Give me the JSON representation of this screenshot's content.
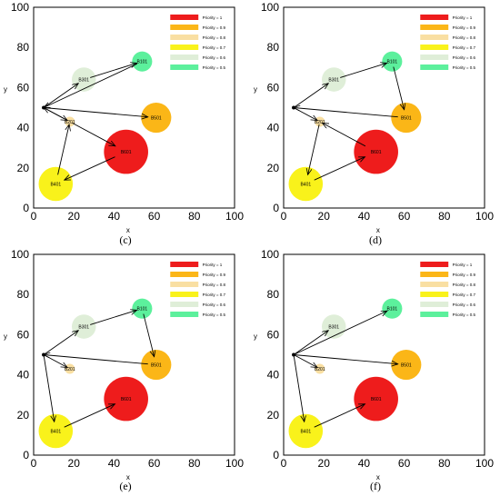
{
  "legend": [
    {
      "label": "Priority = 1",
      "color": "#ee1c1c"
    },
    {
      "label": "Priority = 0.9",
      "color": "#fbb617"
    },
    {
      "label": "Priority = 0.8",
      "color": "#f9dfa2"
    },
    {
      "label": "Priority = 0.7",
      "color": "#f9f21b"
    },
    {
      "label": "Priority = 0.6",
      "color": "#dfeed8"
    },
    {
      "label": "Priority = 0.5",
      "color": "#5cf09c"
    }
  ],
  "axis": {
    "xlabel": "x",
    "ylabel": "y",
    "ticks": [
      0,
      20,
      40,
      60,
      80,
      100
    ]
  },
  "nodes": {
    "B601": {
      "label": "B601",
      "x": 46,
      "y": 28,
      "r": 11,
      "color": "#ee1c1c"
    },
    "B501": {
      "label": "B501",
      "x": 61,
      "y": 45,
      "r": 7.5,
      "color": "#fbb617"
    },
    "B201": {
      "label": "B201",
      "x": 18,
      "y": 43,
      "r": 2.5,
      "color": "#f9dfa2"
    },
    "B401": {
      "label": "B401",
      "x": 11,
      "y": 12,
      "r": 8.5,
      "color": "#f9f21b"
    },
    "B301": {
      "label": "B301",
      "x": 25,
      "y": 64,
      "r": 6,
      "color": "#dfeed8"
    },
    "B101": {
      "label": "B101",
      "x": 54,
      "y": 73,
      "r": 5,
      "color": "#5cf09c"
    }
  },
  "panels": [
    {
      "caption": "(c)",
      "legend_labels": [
        "Priority = 1",
        "Priority = 0.9",
        "Priority = 0.8",
        "Priority = 0.7",
        "Priority = 0.6",
        "Priority = 0.5"
      ],
      "edges": [
        [
          "O",
          "B301"
        ],
        [
          "B301",
          "B101"
        ],
        [
          "B101",
          "O"
        ],
        [
          "O",
          "B501"
        ],
        [
          "O",
          "B201"
        ],
        [
          "B201",
          "B601"
        ],
        [
          "B601",
          "B401"
        ],
        [
          "B401",
          "B201"
        ],
        [
          "B201",
          "O"
        ]
      ]
    },
    {
      "caption": "(d)",
      "legend_labels": [
        "Priority = 1",
        "Priority = 0.9",
        "Priority = 0.8",
        "Priority = 0.7",
        "Priority = 0.6",
        "Priority = 0.5"
      ],
      "edges": [
        [
          "O",
          "B301"
        ],
        [
          "B301",
          "B101"
        ],
        [
          "B101",
          "B501"
        ],
        [
          "B501",
          "O"
        ],
        [
          "O",
          "B201"
        ],
        [
          "B201",
          "B401"
        ],
        [
          "B401",
          "B601"
        ],
        [
          "B601",
          "B201"
        ]
      ]
    },
    {
      "caption": "(e)",
      "legend_labels": [
        "Priority = 1",
        "Priority = 0.9",
        "Priority = 0.8",
        "Priority = 0.7",
        "Priority = 0.6",
        "Priority = 0.5"
      ],
      "edges": [
        [
          "O",
          "B301"
        ],
        [
          "B301",
          "B101"
        ],
        [
          "B101",
          "B501"
        ],
        [
          "B501",
          "O"
        ],
        [
          "O",
          "B201"
        ],
        [
          "O",
          "B401"
        ],
        [
          "B401",
          "B601"
        ]
      ]
    },
    {
      "caption": "(f)",
      "legend_labels": [
        "Priority = 1",
        "Priority = 0.9",
        "Priority = 0.8",
        "Priority = 0.7",
        "Priority = 0.6",
        "Priority = 0.5"
      ],
      "edges": [
        [
          "O",
          "B301"
        ],
        [
          "O",
          "B101"
        ],
        [
          "O",
          "B501"
        ],
        [
          "O",
          "B201"
        ],
        [
          "O",
          "B401"
        ],
        [
          "B401",
          "B601"
        ]
      ]
    }
  ]
}
